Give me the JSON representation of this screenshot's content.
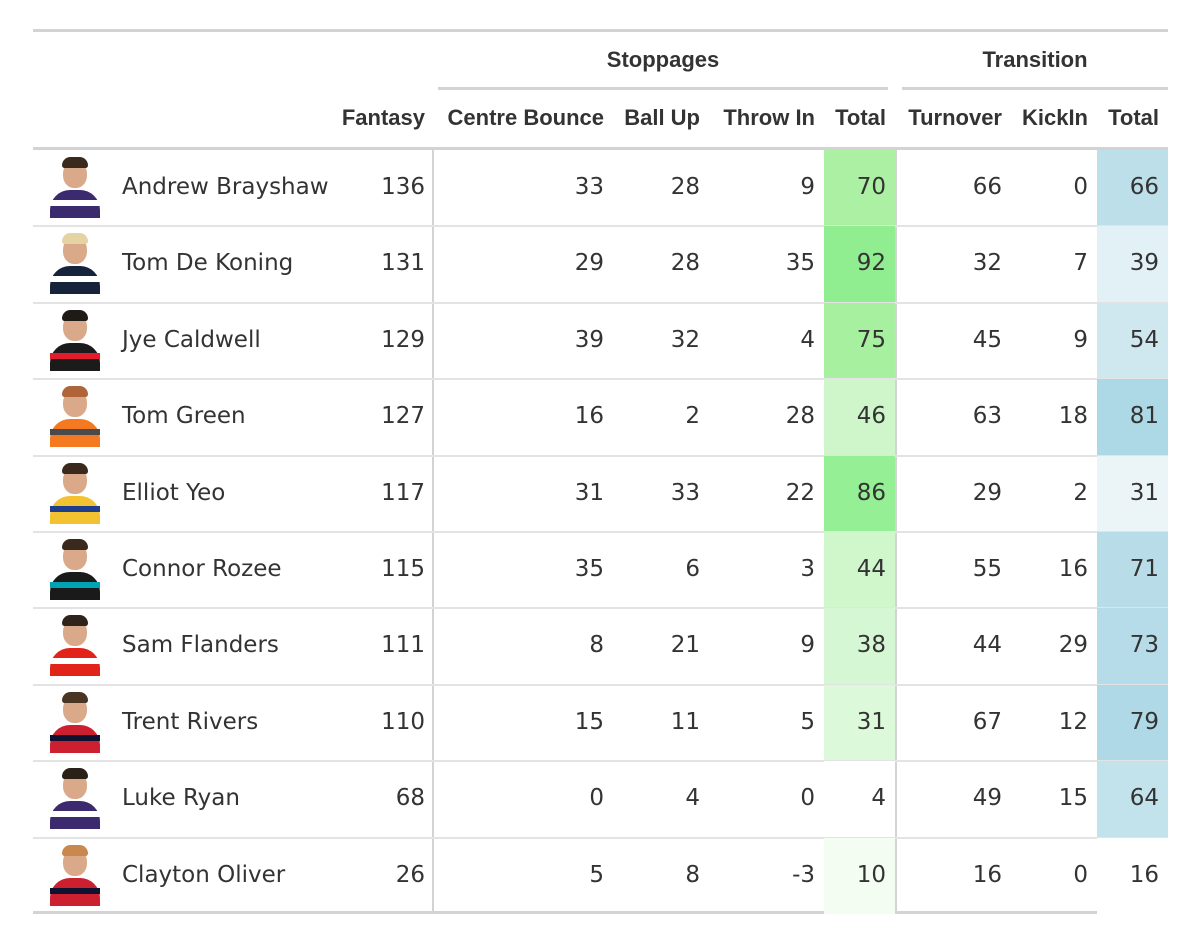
{
  "table": {
    "groups": {
      "stoppages": "Stoppages",
      "transition": "Transition"
    },
    "columns": {
      "fantasy": "Fantasy",
      "centre_bounce": "Centre Bounce",
      "ball_up": "Ball Up",
      "throw_in": "Throw In",
      "stop_total": "Total",
      "turnover": "Turnover",
      "kickin": "KickIn",
      "trans_total": "Total"
    },
    "rows": [
      {
        "name": "Andrew Brayshaw",
        "fantasy": "136",
        "centre_bounce": "33",
        "ball_up": "28",
        "throw_in": "9",
        "stop_total": "70",
        "turnover": "66",
        "kickin": "0",
        "trans_total": "66",
        "stop_color": "#acf0a4",
        "trans_color": "#bcdfea",
        "jersey": "#3b2a6e",
        "stripe": "#ffffff",
        "hair": "#3a2a1e"
      },
      {
        "name": "Tom De Koning",
        "fantasy": "131",
        "centre_bounce": "29",
        "ball_up": "28",
        "throw_in": "35",
        "stop_total": "92",
        "turnover": "32",
        "kickin": "7",
        "trans_total": "39",
        "stop_color": "#90ee90",
        "trans_color": "#e2f1f6",
        "jersey": "#16233a",
        "stripe": "#ffffff",
        "hair": "#e6d3a3"
      },
      {
        "name": "Jye Caldwell",
        "fantasy": "129",
        "centre_bounce": "39",
        "ball_up": "32",
        "throw_in": "4",
        "stop_total": "75",
        "turnover": "45",
        "kickin": "9",
        "trans_total": "54",
        "stop_color": "#a7f0a0",
        "trans_color": "#cfe8f0",
        "jersey": "#1b1b1b",
        "stripe": "#e21b2d",
        "hair": "#1e1a16"
      },
      {
        "name": "Tom Green",
        "fantasy": "127",
        "centre_bounce": "16",
        "ball_up": "2",
        "throw_in": "28",
        "stop_total": "46",
        "turnover": "63",
        "kickin": "18",
        "trans_total": "81",
        "stop_color": "#cef6ca",
        "trans_color": "#add8e6",
        "jersey": "#f47920",
        "stripe": "#4a4a4a",
        "hair": "#b0643a"
      },
      {
        "name": "Elliot Yeo",
        "fantasy": "117",
        "centre_bounce": "31",
        "ball_up": "33",
        "throw_in": "22",
        "stop_total": "86",
        "turnover": "29",
        "kickin": "2",
        "trans_total": "31",
        "stop_color": "#95ef94",
        "trans_color": "#ebf5f8",
        "jersey": "#f2c230",
        "stripe": "#1d3d8f",
        "hair": "#3a2a1e"
      },
      {
        "name": "Connor Rozee",
        "fantasy": "115",
        "centre_bounce": "35",
        "ball_up": "6",
        "throw_in": "3",
        "stop_total": "44",
        "turnover": "55",
        "kickin": "16",
        "trans_total": "71",
        "stop_color": "#d0f6cc",
        "trans_color": "#b8dde9",
        "jersey": "#1a1a1a",
        "stripe": "#00a3b4",
        "hair": "#3a2a1e"
      },
      {
        "name": "Sam Flanders",
        "fantasy": "111",
        "centre_bounce": "8",
        "ball_up": "21",
        "throw_in": "9",
        "stop_total": "38",
        "turnover": "44",
        "kickin": "29",
        "trans_total": "73",
        "stop_color": "#d6f7d3",
        "trans_color": "#b5dce8",
        "jersey": "#e2231a",
        "stripe": "#ffffff",
        "hair": "#2e241c"
      },
      {
        "name": "Trent Rivers",
        "fantasy": "110",
        "centre_bounce": "15",
        "ball_up": "11",
        "throw_in": "5",
        "stop_total": "31",
        "turnover": "67",
        "kickin": "12",
        "trans_total": "79",
        "stop_color": "#dcf9d9",
        "trans_color": "#afd9e7",
        "jersey": "#cc2031",
        "stripe": "#0f1131",
        "hair": "#4a3422"
      },
      {
        "name": "Luke Ryan",
        "fantasy": "68",
        "centre_bounce": "0",
        "ball_up": "4",
        "throw_in": "0",
        "stop_total": "4",
        "turnover": "49",
        "kickin": "15",
        "trans_total": "64",
        "stop_color": "#ffffff",
        "trans_color": "#c2e2ec",
        "jersey": "#3b2a6e",
        "stripe": "#ffffff",
        "hair": "#2a2018"
      },
      {
        "name": "Clayton Oliver",
        "fantasy": "26",
        "centre_bounce": "5",
        "ball_up": "8",
        "throw_in": "-3",
        "stop_total": "10",
        "turnover": "16",
        "kickin": "0",
        "trans_total": "16",
        "stop_color": "#f3fdf2",
        "trans_color": "#ffffff",
        "jersey": "#cc2031",
        "stripe": "#0f1131",
        "hair": "#c8884e"
      }
    ]
  }
}
